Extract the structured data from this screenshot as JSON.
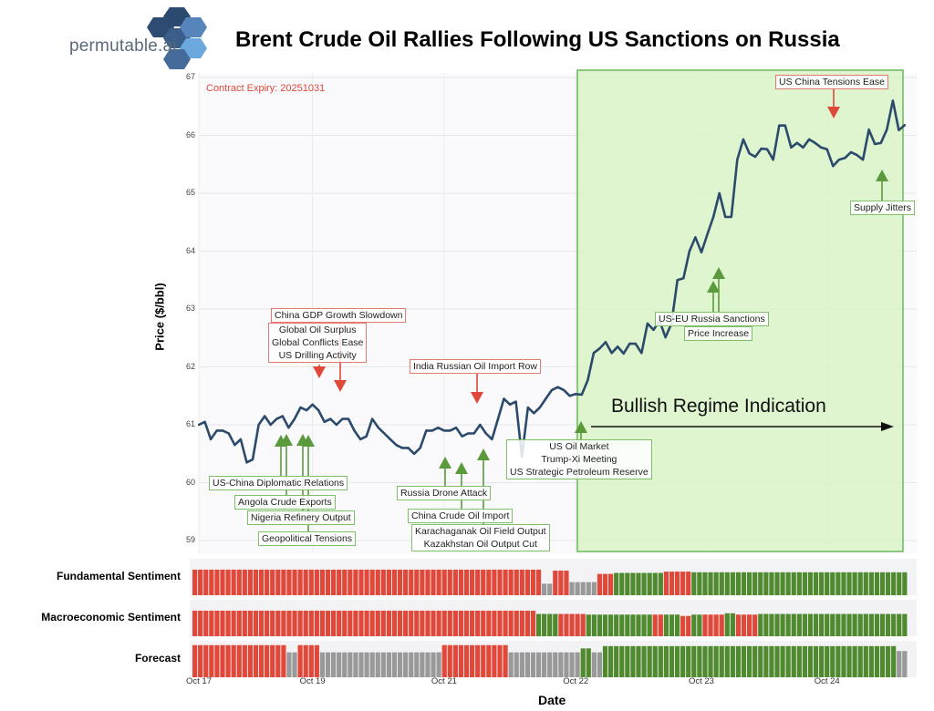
{
  "logo": {
    "text": "permutable.ai"
  },
  "chart_data": {
    "type": "line",
    "title": "Brent Crude Oil Rallies Following US Sanctions on Russia",
    "xlabel": "Date",
    "ylabel": "Price ($/bbl)",
    "ylim": [
      59,
      67
    ],
    "yticks": [
      "59",
      "60",
      "61",
      "62",
      "63",
      "64",
      "65",
      "66",
      "67"
    ],
    "xticks": [
      {
        "label": "Oct 17",
        "index": 0
      },
      {
        "label": "Oct 19",
        "index": 19
      },
      {
        "label": "Oct 21",
        "index": 41
      },
      {
        "label": "Oct 22",
        "index": 63
      },
      {
        "label": "Oct 23",
        "index": 84
      },
      {
        "label": "Oct 24",
        "index": 105
      }
    ],
    "grid": true,
    "note": "Contract Expiry: 20251031",
    "line_color": "#2c4a6b",
    "price": [
      61.0,
      61.05,
      60.75,
      60.9,
      60.9,
      60.85,
      60.65,
      60.75,
      60.35,
      60.4,
      61.0,
      61.15,
      61.0,
      61.1,
      61.15,
      60.95,
      61.1,
      61.3,
      61.25,
      61.35,
      61.25,
      61.05,
      61.1,
      61.0,
      61.1,
      61.1,
      60.9,
      60.75,
      60.8,
      61.1,
      60.95,
      60.85,
      60.75,
      60.65,
      60.6,
      60.6,
      60.5,
      60.6,
      60.9,
      60.9,
      60.95,
      60.9,
      60.9,
      60.95,
      60.8,
      60.85,
      60.85,
      61.0,
      60.85,
      60.75,
      61.1,
      61.45,
      61.35,
      61.4,
      60.45,
      61.3,
      61.2,
      61.3,
      61.45,
      61.6,
      61.65,
      61.6,
      61.5,
      61.53,
      61.52,
      61.77,
      62.24,
      62.32,
      62.43,
      62.24,
      62.35,
      62.23,
      62.4,
      62.4,
      62.24,
      62.75,
      62.64,
      62.8,
      62.51,
      62.75,
      63.5,
      63.53,
      64.0,
      64.24,
      63.98,
      64.29,
      64.59,
      65.0,
      64.59,
      64.59,
      65.58,
      65.93,
      65.69,
      65.63,
      65.77,
      65.76,
      65.58,
      66.17,
      66.17,
      65.79,
      65.87,
      65.79,
      65.93,
      65.87,
      65.79,
      65.76,
      65.47,
      65.58,
      65.61,
      65.71,
      65.66,
      65.58,
      66.1,
      65.85,
      65.87,
      66.1,
      66.6,
      66.09,
      66.18
    ],
    "regime": {
      "label": "Bullish Regime Indication",
      "start_index": 63,
      "end_index": 118,
      "fill": "#d8f3c8",
      "stroke": "#6db85a"
    },
    "annotations": [
      {
        "text": [
          "China GDP Growth Slowdown"
        ],
        "direction": "down",
        "color": "red"
      },
      {
        "text": [
          "Global Oil Surplus",
          "Global Conflicts Ease",
          "US Drilling Activity"
        ],
        "direction": "down",
        "color": "red"
      },
      {
        "text": [
          "India Russian Oil Import Row"
        ],
        "direction": "down",
        "color": "red"
      },
      {
        "text": [
          "US China Tensions Ease"
        ],
        "direction": "down",
        "color": "red"
      },
      {
        "text": [
          "US-China Diplomatic Relations"
        ],
        "direction": "up",
        "color": "green"
      },
      {
        "text": [
          "Angola Crude Exports"
        ],
        "direction": "up",
        "color": "green"
      },
      {
        "text": [
          "Nigeria Refinery Output"
        ],
        "direction": "up",
        "color": "green"
      },
      {
        "text": [
          "Geopolitical Tensions"
        ],
        "direction": "up",
        "color": "green"
      },
      {
        "text": [
          "Russia Drone Attack"
        ],
        "direction": "up",
        "color": "green"
      },
      {
        "text": [
          "China Crude Oil Import"
        ],
        "direction": "up",
        "color": "green"
      },
      {
        "text": [
          "Karachaganak Oil Field Output",
          "Kazakhstan Oil Output Cut"
        ],
        "direction": "up",
        "color": "green"
      },
      {
        "text": [
          "US Oil Market",
          "Trump-Xi Meeting",
          "US Strategic Petroleum Reserve"
        ],
        "direction": "up",
        "color": "green"
      },
      {
        "text": [
          "US-EU Russia Sanctions"
        ],
        "direction": "up",
        "color": "green"
      },
      {
        "text": [
          "Price Increase"
        ],
        "direction": "up",
        "color": "green"
      },
      {
        "text": [
          "Supply Jitters"
        ],
        "direction": "up",
        "color": "green"
      }
    ],
    "colors": {
      "bearish": "#e0483a",
      "bullish": "#4f8a2e",
      "neutral": "#999999",
      "down_arrow": "#e0483a",
      "up_arrow": "#5a9a3c"
    },
    "sentiment_panels": [
      {
        "name": "Fundamental Sentiment",
        "runs": [
          [
            "bearish",
            63,
            0.78
          ],
          [
            "neutral",
            2,
            0.35
          ],
          [
            "bearish",
            3,
            0.75
          ],
          [
            "neutral",
            5,
            0.4
          ],
          [
            "bearish",
            3,
            0.65
          ],
          [
            "bullish",
            9,
            0.68
          ],
          [
            "bearish",
            5,
            0.72
          ],
          [
            "bullish",
            39,
            0.7
          ]
        ]
      },
      {
        "name": "Macroeconomic Sentiment",
        "runs": [
          [
            "bearish",
            62,
            0.78
          ],
          [
            "bullish",
            4,
            0.68
          ],
          [
            "bearish",
            5,
            0.68
          ],
          [
            "bullish",
            12,
            0.66
          ],
          [
            "bearish",
            2,
            0.66
          ],
          [
            "bullish",
            3,
            0.66
          ],
          [
            "bearish",
            2,
            0.62
          ],
          [
            "bullish",
            2,
            0.66
          ],
          [
            "bearish",
            4,
            0.66
          ],
          [
            "bullish",
            2,
            0.7
          ],
          [
            "bearish",
            4,
            0.66
          ],
          [
            "bullish",
            27,
            0.68
          ]
        ]
      },
      {
        "name": "Forecast",
        "runs": [
          [
            "bearish",
            17,
            0.98
          ],
          [
            "neutral",
            2,
            0.76
          ],
          [
            "bearish",
            4,
            0.98
          ],
          [
            "neutral",
            22,
            0.76
          ],
          [
            "bearish",
            12,
            0.98
          ],
          [
            "neutral",
            13,
            0.76
          ],
          [
            "bullish",
            2,
            0.88
          ],
          [
            "neutral",
            2,
            0.76
          ],
          [
            "bullish",
            53,
            0.95
          ],
          [
            "neutral",
            2,
            0.8
          ]
        ]
      }
    ]
  }
}
